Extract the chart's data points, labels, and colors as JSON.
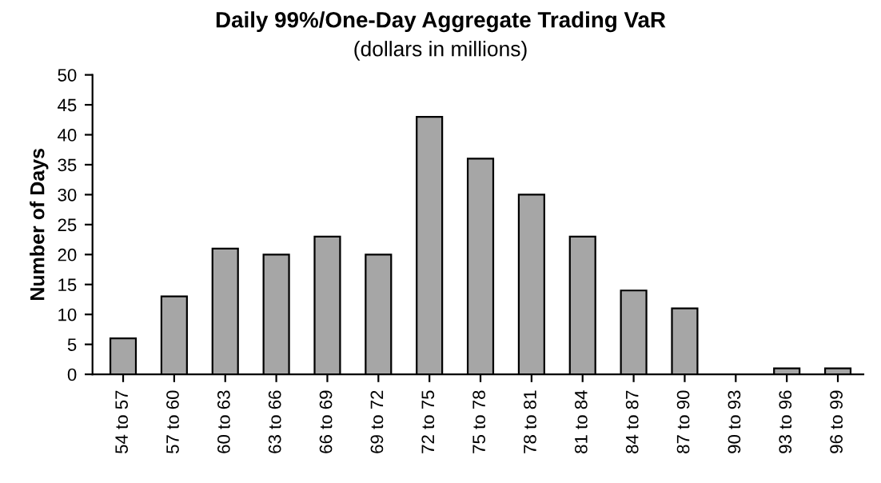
{
  "chart_data": {
    "type": "bar",
    "title": "Daily 99%/One-Day Aggregate Trading VaR",
    "subtitle": "(dollars in millions)",
    "ylabel": "Number of Days",
    "categories": [
      "54 to 57",
      "57 to 60",
      "60 to 63",
      "63 to 66",
      "66 to 69",
      "69 to 72",
      "72 to 75",
      "75 to 78",
      "78 to 81",
      "81 to 84",
      "84 to 87",
      "87 to 90",
      "90 to 93",
      "93 to 96",
      "96 to 99"
    ],
    "values": [
      6,
      13,
      21,
      20,
      23,
      20,
      43,
      36,
      30,
      23,
      14,
      11,
      0,
      1,
      1
    ],
    "color": "#a6a6a6",
    "ylim": [
      0,
      50
    ],
    "yticks": [
      0,
      5,
      10,
      15,
      20,
      25,
      30,
      35,
      40,
      45,
      50
    ],
    "grid": false
  }
}
